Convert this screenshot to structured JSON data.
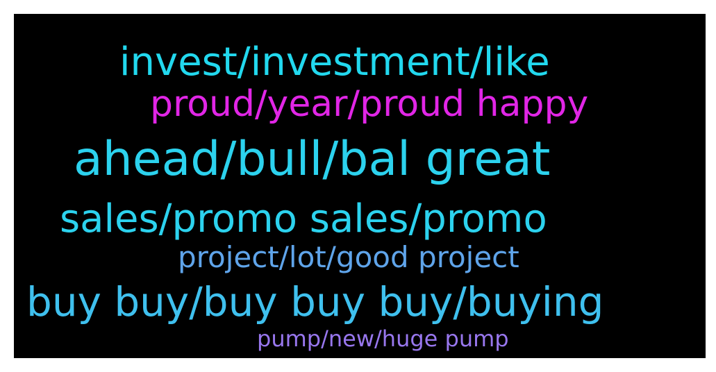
{
  "words": [
    {
      "text": "invest/investment/like",
      "color": "#22d8ee"
    },
    {
      "text": "proud/year/proud happy",
      "color": "#e126e6"
    },
    {
      "text": "ahead/bull/bal great",
      "color": "#2cd2ee"
    },
    {
      "text": "sales/promo sales/promo",
      "color": "#2cd2ee"
    },
    {
      "text": "project/lot/good project",
      "color": "#5fa4ea"
    },
    {
      "text": "buy buy/buy buy buy/buying",
      "color": "#3fc0ee"
    },
    {
      "text": "pump/new/huge pump",
      "color": "#9877ee"
    }
  ],
  "background": "#000000"
}
